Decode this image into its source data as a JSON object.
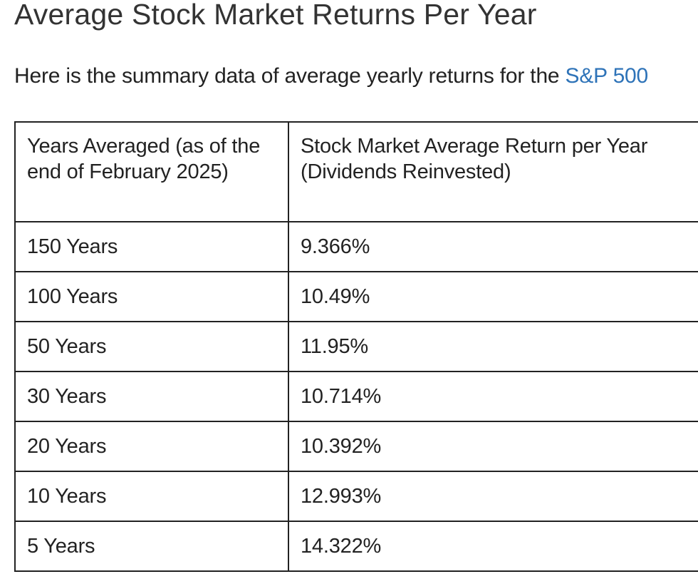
{
  "title": "Average Stock Market Returns Per Year",
  "intro": {
    "text": "Here is the summary data of average yearly returns for the ",
    "link_text": "S&P 500"
  },
  "table": {
    "headers": [
      "Years Averaged (as of the end of February 2025)",
      "Stock Market Average Return per Year (Dividends Reinvested)"
    ],
    "rows": [
      {
        "years": "150 Years",
        "return": "9.366%"
      },
      {
        "years": "100 Years",
        "return": "10.49%"
      },
      {
        "years": "50 Years",
        "return": "11.95%"
      },
      {
        "years": "30 Years",
        "return": "10.714%"
      },
      {
        "years": "20 Years",
        "return": "10.392%"
      },
      {
        "years": "10 Years",
        "return": "12.993%"
      },
      {
        "years": "5 Years",
        "return": "14.322%"
      }
    ]
  },
  "colors": {
    "link": "#2e73b8",
    "text": "#222222",
    "border": "#222222"
  }
}
